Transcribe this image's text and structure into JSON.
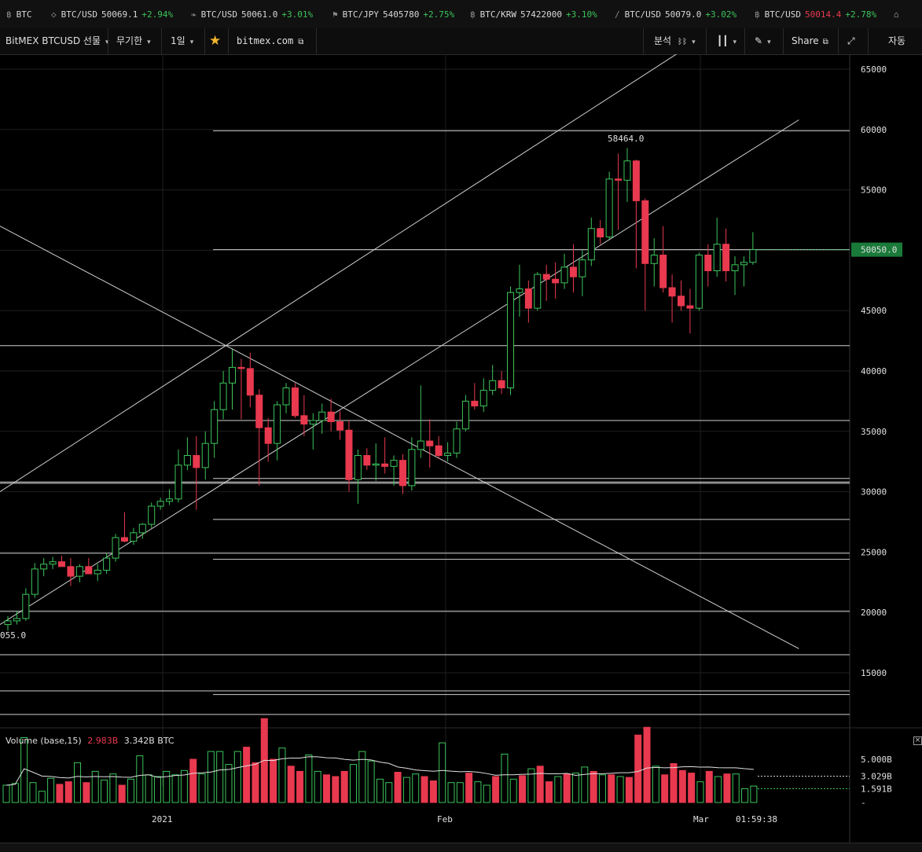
{
  "ticker": [
    {
      "icon": "bitcoin-icon",
      "glyph": "฿",
      "symbol": "BTC",
      "price": "",
      "change": "",
      "dir": ""
    },
    {
      "icon": "diamond-icon",
      "glyph": "◇",
      "symbol": "BTC/USD",
      "price": "50069.1",
      "change": "+2.94%",
      "dir": "up"
    },
    {
      "icon": "leaf-icon",
      "glyph": "❧",
      "symbol": "BTC/USD",
      "price": "50061.0",
      "change": "+3.01%",
      "dir": "up"
    },
    {
      "icon": "flag-icon",
      "glyph": "⚑",
      "symbol": "BTC/JPY",
      "price": "5405780",
      "change": "+2.75%",
      "dir": "up"
    },
    {
      "icon": "bitcoin-icon",
      "glyph": "฿",
      "symbol": "BTC/KRW",
      "price": "57422000",
      "change": "+3.10%",
      "dir": "up"
    },
    {
      "icon": "slash-icon",
      "glyph": "∕",
      "symbol": "BTC/USD",
      "price": "50079.0",
      "change": "+3.02%",
      "dir": "up"
    },
    {
      "icon": "bitcoin-icon",
      "glyph": "฿",
      "symbol": "BTC/USD",
      "price": "50014.4",
      "change": "+2.78%",
      "dir": "up",
      "price_color": "dn"
    },
    {
      "icon": "bank-icon",
      "glyph": "⌂",
      "symbol": "",
      "price": "",
      "change": "",
      "dir": ""
    }
  ],
  "toolbar": {
    "symbol_label": "BitMEX BTCUSD 선물",
    "contract_label": "무기한",
    "interval_label": "1일",
    "site_label": "bitmex.com",
    "analysis_label": "분석",
    "share_label": "Share",
    "auto_label": "자동"
  },
  "price_axis": {
    "ticks": [
      "65000",
      "60000",
      "55000",
      "50000",
      "45000",
      "40000",
      "35000",
      "30000",
      "25000",
      "20000",
      "15000"
    ],
    "current_price": "50050.0",
    "current_color": "#1a7a3a"
  },
  "annotations": {
    "high_label": "58464.0",
    "low_label": "055.0"
  },
  "time_axis": {
    "labels": [
      "2021",
      "Feb",
      "Mar"
    ],
    "countdown": "01:59:38"
  },
  "volume": {
    "label": "Volume (base,15)",
    "value1": "2.983B",
    "value2": "3.342B BTC",
    "axis_ticks": [
      "5.000B",
      "3.029B",
      "1.591B"
    ]
  },
  "colors": {
    "up": "#3cc45a",
    "down": "#e8394f",
    "line": "#d0d0d0"
  },
  "chart_data": {
    "type": "candlestick",
    "ylim": [
      12000,
      67000
    ],
    "days": 79,
    "current_price": 50050,
    "candles": [
      {
        "o": 19000,
        "h": 19700,
        "l": 18500,
        "c": 19300
      },
      {
        "o": 19300,
        "h": 20100,
        "l": 19000,
        "c": 19500
      },
      {
        "o": 19500,
        "h": 22000,
        "l": 19300,
        "c": 21500
      },
      {
        "o": 21500,
        "h": 24100,
        "l": 21200,
        "c": 23600
      },
      {
        "o": 23600,
        "h": 24500,
        "l": 23000,
        "c": 24000
      },
      {
        "o": 24000,
        "h": 24600,
        "l": 23600,
        "c": 24200
      },
      {
        "o": 24200,
        "h": 24700,
        "l": 23800,
        "c": 23800
      },
      {
        "o": 23800,
        "h": 24500,
        "l": 22200,
        "c": 23000
      },
      {
        "o": 23000,
        "h": 24000,
        "l": 22500,
        "c": 23800
      },
      {
        "o": 23800,
        "h": 24500,
        "l": 23200,
        "c": 23200
      },
      {
        "o": 23200,
        "h": 24000,
        "l": 22600,
        "c": 23500
      },
      {
        "o": 23500,
        "h": 24900,
        "l": 23200,
        "c": 24500
      },
      {
        "o": 24500,
        "h": 26500,
        "l": 24200,
        "c": 26200
      },
      {
        "o": 26200,
        "h": 28300,
        "l": 25800,
        "c": 25900
      },
      {
        "o": 25900,
        "h": 27000,
        "l": 25600,
        "c": 26600
      },
      {
        "o": 26600,
        "h": 27400,
        "l": 26100,
        "c": 27300
      },
      {
        "o": 27300,
        "h": 29100,
        "l": 27000,
        "c": 28800
      },
      {
        "o": 28800,
        "h": 29500,
        "l": 28500,
        "c": 29200
      },
      {
        "o": 29200,
        "h": 30200,
        "l": 28900,
        "c": 29400
      },
      {
        "o": 29400,
        "h": 33500,
        "l": 29100,
        "c": 32200
      },
      {
        "o": 32200,
        "h": 34500,
        "l": 31800,
        "c": 33000
      },
      {
        "o": 33000,
        "h": 34600,
        "l": 28500,
        "c": 32000
      },
      {
        "o": 32000,
        "h": 35000,
        "l": 31000,
        "c": 34000
      },
      {
        "o": 34000,
        "h": 37500,
        "l": 32800,
        "c": 36800
      },
      {
        "o": 36800,
        "h": 40000,
        "l": 36000,
        "c": 39000
      },
      {
        "o": 39000,
        "h": 41800,
        "l": 36800,
        "c": 40300
      },
      {
        "o": 40300,
        "h": 41000,
        "l": 36000,
        "c": 40200
      },
      {
        "o": 40200,
        "h": 41500,
        "l": 37000,
        "c": 38000
      },
      {
        "o": 38000,
        "h": 38500,
        "l": 30500,
        "c": 35300
      },
      {
        "o": 35300,
        "h": 36100,
        "l": 32500,
        "c": 34000
      },
      {
        "o": 34000,
        "h": 37500,
        "l": 32600,
        "c": 37200
      },
      {
        "o": 37200,
        "h": 39000,
        "l": 36500,
        "c": 38600
      },
      {
        "o": 38600,
        "h": 39000,
        "l": 36100,
        "c": 36300
      },
      {
        "o": 36300,
        "h": 38000,
        "l": 34600,
        "c": 35600
      },
      {
        "o": 35600,
        "h": 36500,
        "l": 33500,
        "c": 35900
      },
      {
        "o": 35900,
        "h": 37300,
        "l": 34800,
        "c": 36600
      },
      {
        "o": 36600,
        "h": 37700,
        "l": 35000,
        "c": 35800
      },
      {
        "o": 35800,
        "h": 36700,
        "l": 34300,
        "c": 35100
      },
      {
        "o": 35100,
        "h": 35900,
        "l": 30000,
        "c": 31000
      },
      {
        "o": 31000,
        "h": 33500,
        "l": 29000,
        "c": 33000
      },
      {
        "o": 33000,
        "h": 33600,
        "l": 31800,
        "c": 32200
      },
      {
        "o": 32200,
        "h": 34000,
        "l": 30900,
        "c": 32300
      },
      {
        "o": 32300,
        "h": 34500,
        "l": 31500,
        "c": 32100
      },
      {
        "o": 32100,
        "h": 33000,
        "l": 30500,
        "c": 32600
      },
      {
        "o": 32600,
        "h": 33100,
        "l": 29800,
        "c": 30500
      },
      {
        "o": 30500,
        "h": 34500,
        "l": 30100,
        "c": 33500
      },
      {
        "o": 33500,
        "h": 38800,
        "l": 32800,
        "c": 34200
      },
      {
        "o": 34200,
        "h": 36000,
        "l": 32000,
        "c": 33800
      },
      {
        "o": 33800,
        "h": 34600,
        "l": 32700,
        "c": 33000
      },
      {
        "o": 33000,
        "h": 34100,
        "l": 32500,
        "c": 33200
      },
      {
        "o": 33200,
        "h": 35800,
        "l": 32800,
        "c": 35200
      },
      {
        "o": 35200,
        "h": 38000,
        "l": 35000,
        "c": 37500
      },
      {
        "o": 37500,
        "h": 39000,
        "l": 36800,
        "c": 37100
      },
      {
        "o": 37100,
        "h": 39400,
        "l": 36600,
        "c": 38400
      },
      {
        "o": 38400,
        "h": 40500,
        "l": 38000,
        "c": 39200
      },
      {
        "o": 39200,
        "h": 40000,
        "l": 38100,
        "c": 38600
      },
      {
        "o": 38600,
        "h": 47000,
        "l": 38000,
        "c": 46500
      },
      {
        "o": 46500,
        "h": 48800,
        "l": 44500,
        "c": 46800
      },
      {
        "o": 46800,
        "h": 47500,
        "l": 44000,
        "c": 45200
      },
      {
        "o": 45200,
        "h": 48200,
        "l": 45000,
        "c": 48000
      },
      {
        "o": 48000,
        "h": 48800,
        "l": 45800,
        "c": 47600
      },
      {
        "o": 47600,
        "h": 49000,
        "l": 46000,
        "c": 47300
      },
      {
        "o": 47300,
        "h": 49700,
        "l": 46800,
        "c": 48600
      },
      {
        "o": 48600,
        "h": 50500,
        "l": 46500,
        "c": 47800
      },
      {
        "o": 47800,
        "h": 50000,
        "l": 46200,
        "c": 49200
      },
      {
        "o": 49200,
        "h": 52700,
        "l": 48700,
        "c": 51800
      },
      {
        "o": 51800,
        "h": 52500,
        "l": 50500,
        "c": 51100
      },
      {
        "o": 51100,
        "h": 56500,
        "l": 50900,
        "c": 55900
      },
      {
        "o": 55900,
        "h": 58000,
        "l": 51700,
        "c": 55800
      },
      {
        "o": 55800,
        "h": 58464,
        "l": 54000,
        "c": 57400
      },
      {
        "o": 57400,
        "h": 57500,
        "l": 48500,
        "c": 54100
      },
      {
        "o": 54100,
        "h": 54300,
        "l": 45000,
        "c": 48900
      },
      {
        "o": 48900,
        "h": 51000,
        "l": 47000,
        "c": 49600
      },
      {
        "o": 49600,
        "h": 52000,
        "l": 46500,
        "c": 46900
      },
      {
        "o": 46900,
        "h": 48000,
        "l": 44000,
        "c": 46200
      },
      {
        "o": 46200,
        "h": 47500,
        "l": 45000,
        "c": 45400
      },
      {
        "o": 45400,
        "h": 46800,
        "l": 43100,
        "c": 45200
      },
      {
        "o": 45200,
        "h": 49800,
        "l": 45000,
        "c": 49600
      },
      {
        "o": 49600,
        "h": 50500,
        "l": 47000,
        "c": 48300
      }
    ],
    "extra_candles": [
      {
        "o": 48300,
        "h": 52700,
        "l": 47800,
        "c": 50500
      },
      {
        "o": 50500,
        "h": 51800,
        "l": 47400,
        "c": 48300
      },
      {
        "o": 48300,
        "h": 49500,
        "l": 46300,
        "c": 48800
      },
      {
        "o": 48800,
        "h": 49500,
        "l": 47000,
        "c": 49000
      },
      {
        "o": 49000,
        "h": 51500,
        "l": 48800,
        "c": 50050
      }
    ],
    "horizontal_levels": [
      59900,
      50050,
      42100,
      35900,
      31100,
      30800,
      30700,
      27700,
      24900,
      24400,
      20100,
      16500,
      13500,
      13200,
      11300
    ],
    "trendlines": [
      {
        "from": [
          0,
          30000
        ],
        "to": [
          79,
          68000
        ]
      },
      {
        "from": [
          0,
          19000
        ],
        "to": [
          89,
          60800
        ]
      },
      {
        "from": [
          0,
          52000
        ],
        "to": [
          89,
          17000
        ]
      }
    ],
    "volume_bars": [
      2.0,
      2.2,
      7.5,
      2.3,
      1.3,
      2.8,
      2.1,
      2.4,
      4.6,
      2.3,
      3.6,
      2.6,
      3.3,
      2.0,
      2.7,
      5.4,
      3.2,
      3.0,
      3.6,
      3.2,
      3.7,
      5.0,
      3.3,
      5.9,
      5.9,
      4.4,
      5.9,
      6.4,
      4.6,
      9.7,
      5.0,
      6.3,
      4.2,
      3.6,
      5.5,
      3.6,
      3.2,
      3.0,
      3.6,
      4.4,
      5.9,
      4.8,
      2.7,
      2.3,
      3.5,
      2.9,
      3.3,
      3.0,
      2.5,
      6.9,
      2.3,
      2.3,
      3.4,
      2.4,
      2.0,
      3.0,
      5.6,
      2.7,
      3.1,
      3.9,
      4.2,
      2.4,
      3.0,
      3.3,
      3.4,
      4.1,
      3.6,
      3.2,
      3.2,
      3.0,
      2.9,
      7.8,
      8.7,
      4.2,
      3.2,
      4.5,
      3.7,
      3.4,
      2.4,
      3.6,
      3.0,
      3.3,
      3.3,
      1.6,
      1.9
    ],
    "volume_up": [
      1,
      1,
      1,
      1,
      1,
      1,
      0,
      0,
      1,
      0,
      1,
      1,
      1,
      0,
      1,
      1,
      1,
      1,
      1,
      1,
      1,
      0,
      1,
      1,
      1,
      1,
      1,
      0,
      0,
      0,
      0,
      1,
      0,
      0,
      1,
      1,
      0,
      0,
      0,
      1,
      1,
      1,
      1,
      1,
      0,
      1,
      1,
      0,
      0,
      1,
      1,
      1,
      0,
      1,
      1,
      0,
      1,
      1,
      0,
      1,
      0,
      0,
      1,
      0,
      1,
      1,
      0,
      1,
      0,
      1,
      0,
      0,
      0,
      1,
      0,
      0,
      0,
      0,
      1,
      0,
      1,
      0,
      1,
      1,
      1
    ],
    "volume_ma_end": 3.029
  }
}
